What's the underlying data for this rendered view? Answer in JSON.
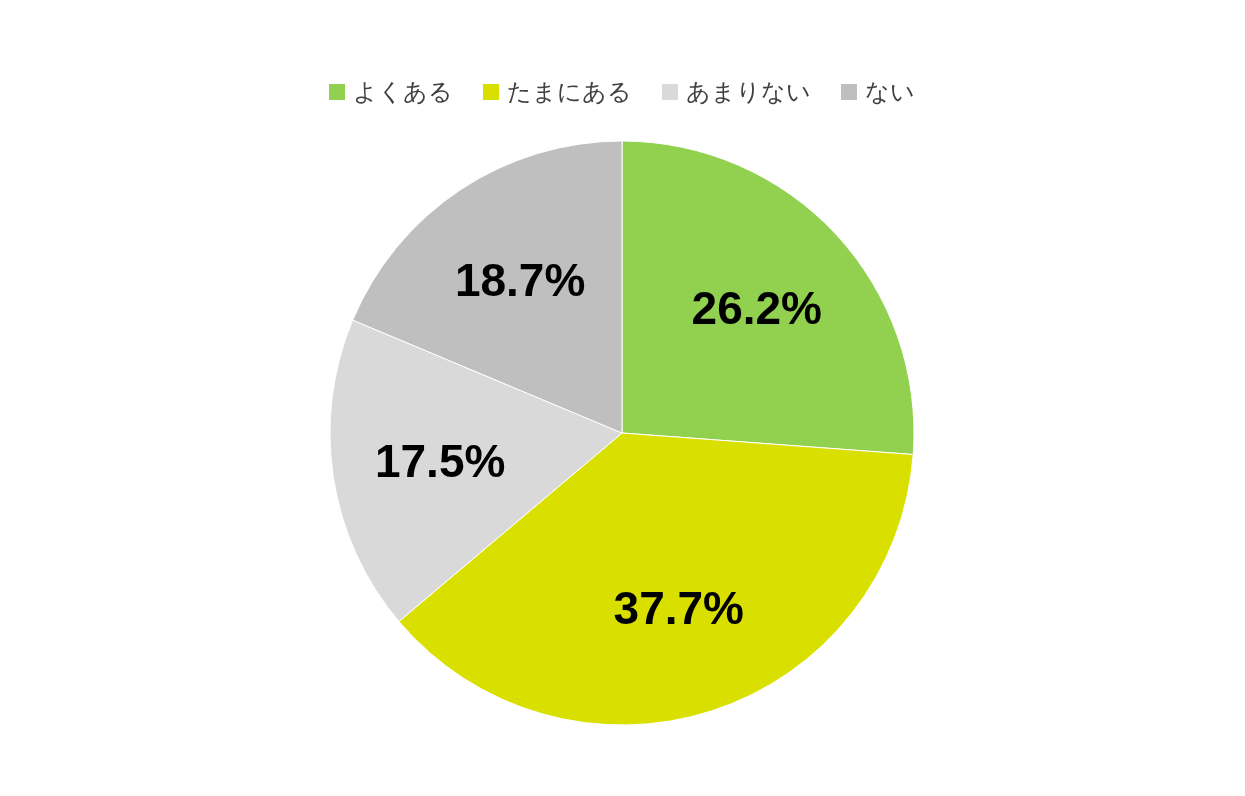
{
  "chart_data": {
    "type": "pie",
    "categories": [
      "よくある",
      "たまにある",
      "あまりない",
      "ない"
    ],
    "values": [
      26.2,
      37.7,
      17.5,
      18.7
    ],
    "value_labels": [
      "26.2%",
      "37.7%",
      "17.5%",
      "18.7%"
    ],
    "colors": [
      "#92d050",
      "#d9e000",
      "#d9d9d9",
      "#bfbfbf"
    ],
    "legend": "top"
  }
}
